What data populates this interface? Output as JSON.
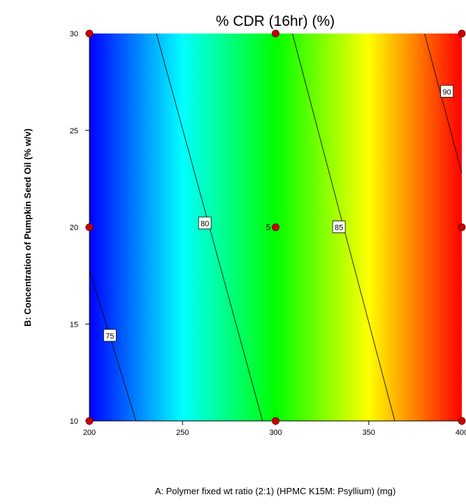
{
  "chart_data": {
    "type": "contour",
    "title": "% CDR (16hr) (%)",
    "xlabel": "A: Polymer fixed wt ratio (2:1) (HPMC K15M: Psyllium) (mg)",
    "ylabel": "B: Concentration of Pumpkin Seed Oil (% w/v)",
    "xlim": [
      200,
      400
    ],
    "ylim": [
      10,
      30
    ],
    "x_ticks": [
      "200",
      "250",
      "300",
      "350",
      "400"
    ],
    "y_ticks": [
      "10",
      "15",
      "20",
      "25",
      "30"
    ],
    "contour_levels": [
      {
        "label": "75",
        "points": [
          [
            200,
            17.8
          ],
          [
            225,
            10
          ]
        ],
        "label_at": [
          211,
          14.4
        ]
      },
      {
        "label": "80",
        "points": [
          [
            236,
            30
          ],
          [
            293,
            10
          ]
        ],
        "label_at": [
          262,
          20.2
        ]
      },
      {
        "label": "85",
        "points": [
          [
            309,
            30
          ],
          [
            364,
            10
          ]
        ],
        "label_at": [
          334,
          20.0
        ]
      },
      {
        "label": "90",
        "points": [
          [
            380,
            30
          ],
          [
            400,
            22.8
          ]
        ],
        "label_at": [
          392,
          27.0
        ]
      }
    ],
    "design_points": [
      {
        "x": 200,
        "y": 10
      },
      {
        "x": 300,
        "y": 10
      },
      {
        "x": 400,
        "y": 10
      },
      {
        "x": 200,
        "y": 20
      },
      {
        "x": 300,
        "y": 20,
        "label": "5"
      },
      {
        "x": 400,
        "y": 20
      },
      {
        "x": 200,
        "y": 30
      },
      {
        "x": 300,
        "y": 30
      },
      {
        "x": 400,
        "y": 30
      }
    ],
    "colormap": [
      "#0000ff",
      "#00ffff",
      "#00ff00",
      "#ffff00",
      "#ff0000"
    ],
    "point_color": "#cc0000",
    "grid": false
  }
}
